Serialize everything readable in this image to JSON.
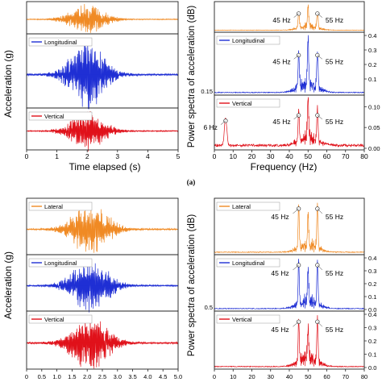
{
  "colors": {
    "lateral": "#f08a24",
    "longitudinal": "#1f2fd4",
    "vertical": "#e0111a",
    "axis": "#222222",
    "marker": "#ffffff"
  },
  "caption": {
    "a": "(a)"
  },
  "chart_data": [
    {
      "type": "line",
      "panel": "a-time",
      "ylabel": "Acceleration (g)",
      "xlabel": "Time elapsed (s)",
      "xlim": [
        0,
        5
      ],
      "xticks": [
        "0",
        "1",
        "2",
        "3",
        "4",
        "5"
      ],
      "series": [
        {
          "name": "",
          "channel": "lateral",
          "peak_time": 2.0,
          "duration": [
            0.5,
            3.6
          ]
        },
        {
          "name": "Longitudinal",
          "channel": "longitudinal",
          "peak_time": 2.0,
          "duration": [
            0.6,
            3.4
          ]
        },
        {
          "name": "Vertical",
          "channel": "vertical",
          "peak_time": 2.0,
          "duration": [
            0.6,
            3.3
          ]
        }
      ]
    },
    {
      "type": "line",
      "panel": "a-spectrum",
      "ylabel": "Power spectra of acceleration (dB)",
      "xlabel": "Frequency (Hz)",
      "xlim": [
        0,
        80
      ],
      "xticks": [
        "0",
        "10",
        "20",
        "30",
        "40",
        "50",
        "60",
        "70",
        "80"
      ],
      "subplots": [
        {
          "name": "",
          "channel": "lateral",
          "ylim": [
            0,
            0.4
          ],
          "yticks": [],
          "annotations": [
            {
              "x": 45,
              "label": "45 Hz"
            },
            {
              "x": 55,
              "label": "55 Hz"
            }
          ]
        },
        {
          "name": "Longitudinal",
          "channel": "longitudinal",
          "ylim": [
            0,
            0.4
          ],
          "yticks": [
            "0.1",
            "0.2",
            "0.3",
            "0.4"
          ],
          "yticks_left": [
            "0.15"
          ],
          "annotations": [
            {
              "x": 45,
              "label": "45 Hz"
            },
            {
              "x": 55,
              "label": "55 Hz"
            }
          ]
        },
        {
          "name": "Vertical",
          "channel": "vertical",
          "ylim": [
            0,
            0.12
          ],
          "yticks": [
            "0.00",
            "0.05",
            "0.10"
          ],
          "annotations": [
            {
              "x": 6,
              "label": "6 Hz"
            },
            {
              "x": 45,
              "label": "45 Hz"
            },
            {
              "x": 55,
              "label": "55 Hz"
            }
          ]
        }
      ]
    },
    {
      "type": "line",
      "panel": "b-time",
      "ylabel": "Acceleration (g)",
      "xlabel": "",
      "xlim": [
        0,
        5
      ],
      "xticks": [
        "0",
        "0.5",
        "1.0",
        "1.5",
        "2.0",
        "2.5",
        "3.0",
        "3.5",
        "4.0",
        "4.5",
        "5.0"
      ],
      "series": [
        {
          "name": "Lateral",
          "channel": "lateral",
          "peak_time": 2.1
        },
        {
          "name": "Longitudinal",
          "channel": "longitudinal",
          "peak_time": 2.1
        },
        {
          "name": "Vertical",
          "channel": "vertical",
          "peak_time": 2.1
        }
      ]
    },
    {
      "type": "line",
      "panel": "b-spectrum",
      "ylabel": "Power spectra of acceleration (dB)",
      "xlabel": "",
      "xlim": [
        0,
        80
      ],
      "xticks": [
        "0",
        "10",
        "20",
        "30",
        "40",
        "50",
        "60",
        "70",
        "80"
      ],
      "subplots": [
        {
          "name": "Lateral",
          "channel": "lateral",
          "ylim": [
            0,
            0.4
          ],
          "yticks": [],
          "annotations": [
            {
              "x": 45,
              "label": "45 Hz"
            },
            {
              "x": 55,
              "label": "55 Hz"
            }
          ]
        },
        {
          "name": "Longitudinal",
          "channel": "longitudinal",
          "ylim": [
            0,
            0.4
          ],
          "yticks": [
            "0.0",
            "0.1",
            "0.2",
            "0.3",
            "0.4"
          ],
          "yticks_left": [
            "0.5"
          ],
          "annotations": [
            {
              "x": 45,
              "label": "45 Hz"
            },
            {
              "x": 55,
              "label": "55 Hz"
            }
          ]
        },
        {
          "name": "Vertical",
          "channel": "vertical",
          "ylim": [
            0,
            0.4
          ],
          "yticks": [
            "0.0",
            "0.1",
            "0.2",
            "0.3",
            "0.4"
          ],
          "annotations": [
            {
              "x": 45,
              "label": "45 Hz"
            },
            {
              "x": 55,
              "label": "55 Hz"
            }
          ]
        }
      ]
    }
  ]
}
